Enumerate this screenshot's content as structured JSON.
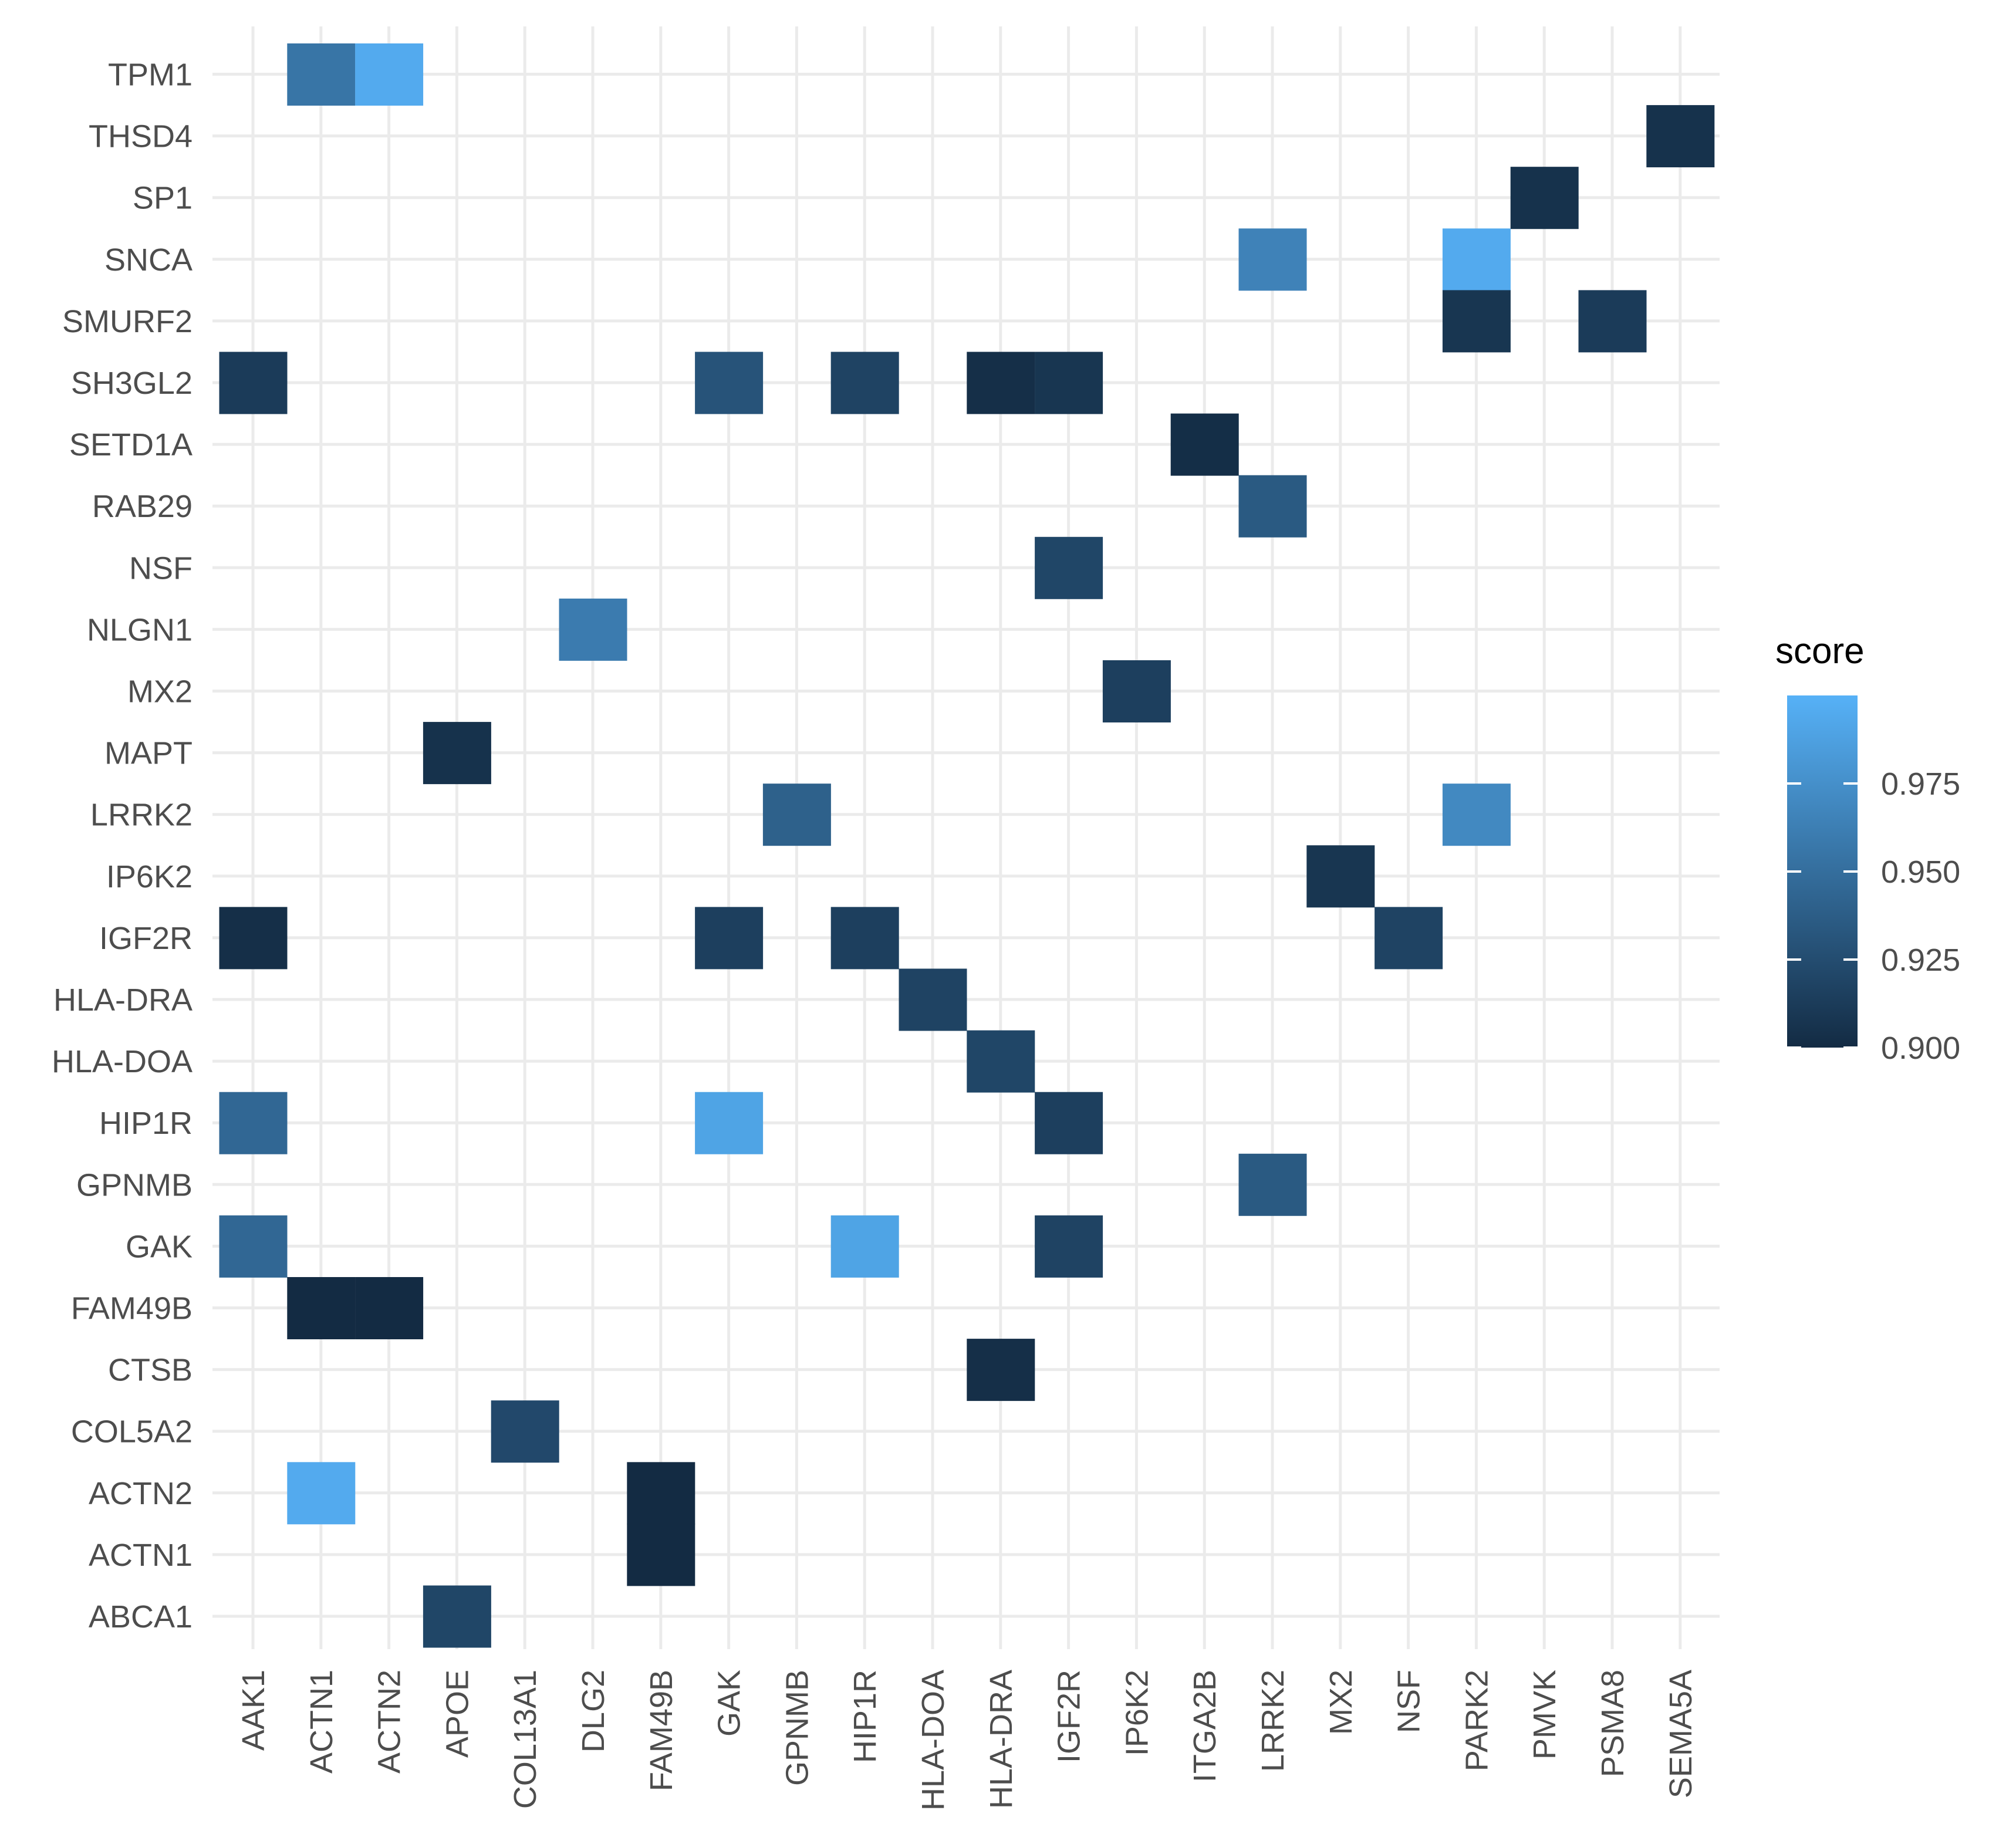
{
  "chart_data": {
    "type": "heatmap",
    "title": "",
    "xlabel": "",
    "ylabel": "",
    "x_categories": [
      "AAK1",
      "ACTN1",
      "ACTN2",
      "APOE",
      "COL13A1",
      "DLG2",
      "FAM49B",
      "GAK",
      "GPNMB",
      "HIP1R",
      "HLA-DOA",
      "HLA-DRA",
      "IGF2R",
      "IP6K2",
      "ITGA2B",
      "LRRK2",
      "MX2",
      "NSF",
      "PARK2",
      "PMVK",
      "PSMA8",
      "SEMA5A"
    ],
    "y_categories": [
      "ABCA1",
      "ACTN1",
      "ACTN2",
      "COL5A2",
      "CTSB",
      "FAM49B",
      "GAK",
      "GPNMB",
      "HIP1R",
      "HLA-DOA",
      "HLA-DRA",
      "IGF2R",
      "IP6K2",
      "LRRK2",
      "MAPT",
      "MX2",
      "NLGN1",
      "NSF",
      "RAB29",
      "SETD1A",
      "SH3GL2",
      "SMURF2",
      "SNCA",
      "SP1",
      "THSD4",
      "TPM1"
    ],
    "cells": [
      {
        "x": "ACTN1",
        "y": "TPM1",
        "value": 0.955
      },
      {
        "x": "ACTN2",
        "y": "TPM1",
        "value": 0.995
      },
      {
        "x": "SEMA5A",
        "y": "THSD4",
        "value": 0.905
      },
      {
        "x": "PMVK",
        "y": "SP1",
        "value": 0.905
      },
      {
        "x": "LRRK2",
        "y": "SNCA",
        "value": 0.965
      },
      {
        "x": "PARK2",
        "y": "SNCA",
        "value": 0.995
      },
      {
        "x": "PARK2",
        "y": "SMURF2",
        "value": 0.908
      },
      {
        "x": "PSMA8",
        "y": "SMURF2",
        "value": 0.912
      },
      {
        "x": "AAK1",
        "y": "SH3GL2",
        "value": 0.912
      },
      {
        "x": "GAK",
        "y": "SH3GL2",
        "value": 0.93
      },
      {
        "x": "HIP1R",
        "y": "SH3GL2",
        "value": 0.918
      },
      {
        "x": "HLA-DRA",
        "y": "SH3GL2",
        "value": 0.903
      },
      {
        "x": "IGF2R",
        "y": "SH3GL2",
        "value": 0.908
      },
      {
        "x": "ITGA2B",
        "y": "SETD1A",
        "value": 0.902
      },
      {
        "x": "LRRK2",
        "y": "RAB29",
        "value": 0.935
      },
      {
        "x": "IGF2R",
        "y": "NSF",
        "value": 0.92
      },
      {
        "x": "DLG2",
        "y": "NLGN1",
        "value": 0.96
      },
      {
        "x": "IP6K2",
        "y": "MX2",
        "value": 0.915
      },
      {
        "x": "APOE",
        "y": "MAPT",
        "value": 0.905
      },
      {
        "x": "GPNMB",
        "y": "LRRK2",
        "value": 0.94
      },
      {
        "x": "PARK2",
        "y": "LRRK2",
        "value": 0.97
      },
      {
        "x": "MX2",
        "y": "IP6K2",
        "value": 0.908
      },
      {
        "x": "AAK1",
        "y": "IGF2R",
        "value": 0.903
      },
      {
        "x": "GAK",
        "y": "IGF2R",
        "value": 0.915
      },
      {
        "x": "HIP1R",
        "y": "IGF2R",
        "value": 0.915
      },
      {
        "x": "NSF",
        "y": "IGF2R",
        "value": 0.918
      },
      {
        "x": "HLA-DOA",
        "y": "HLA-DRA",
        "value": 0.918
      },
      {
        "x": "HLA-DRA",
        "y": "HLA-DOA",
        "value": 0.92
      },
      {
        "x": "AAK1",
        "y": "HIP1R",
        "value": 0.945
      },
      {
        "x": "GAK",
        "y": "HIP1R",
        "value": 0.99
      },
      {
        "x": "IGF2R",
        "y": "HIP1R",
        "value": 0.915
      },
      {
        "x": "LRRK2",
        "y": "GPNMB",
        "value": 0.935
      },
      {
        "x": "AAK1",
        "y": "GAK",
        "value": 0.945
      },
      {
        "x": "HIP1R",
        "y": "GAK",
        "value": 0.99
      },
      {
        "x": "IGF2R",
        "y": "GAK",
        "value": 0.918
      },
      {
        "x": "ACTN1",
        "y": "FAM49B",
        "value": 0.9
      },
      {
        "x": "ACTN2",
        "y": "FAM49B",
        "value": 0.9
      },
      {
        "x": "HLA-DRA",
        "y": "CTSB",
        "value": 0.903
      },
      {
        "x": "COL13A1",
        "y": "COL5A2",
        "value": 0.922
      },
      {
        "x": "ACTN1",
        "y": "ACTN2",
        "value": 0.995
      },
      {
        "x": "FAM49B",
        "y": "ACTN2",
        "value": 0.9
      },
      {
        "x": "FAM49B",
        "y": "ACTN1",
        "value": 0.9
      },
      {
        "x": "APOE",
        "y": "ABCA1",
        "value": 0.92
      }
    ],
    "legend": {
      "title": "score",
      "ticks": [
        0.9,
        0.925,
        0.95,
        0.975
      ],
      "tick_labels": [
        "0.900",
        "0.925",
        "0.950",
        "0.975"
      ],
      "min": 0.9,
      "max": 1.0,
      "low_color": "#132B43",
      "high_color": "#56B1F7",
      "placement": "right"
    },
    "grid": true
  }
}
